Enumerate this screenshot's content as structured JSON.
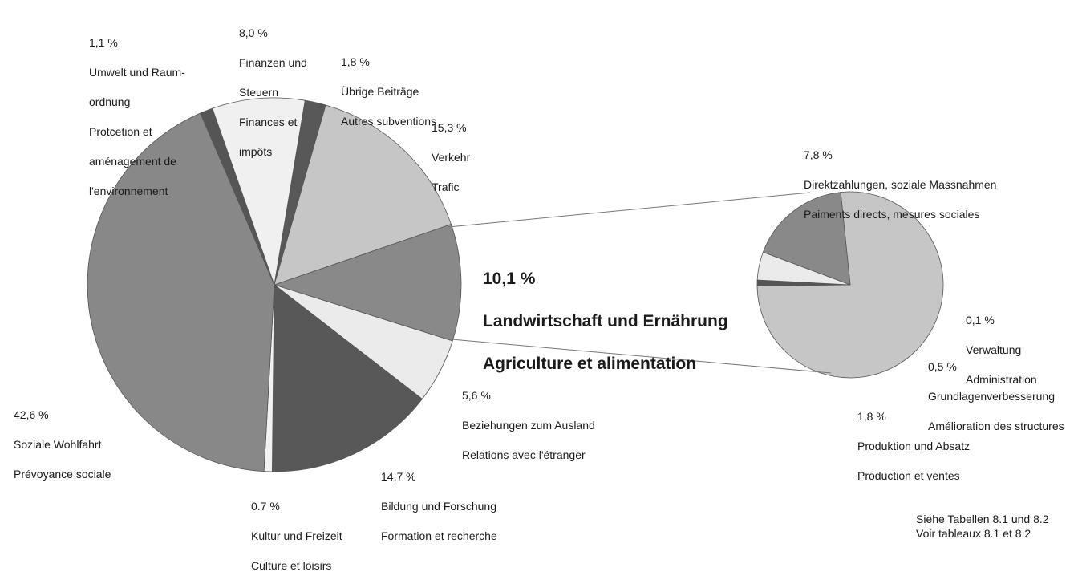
{
  "chart_data": [
    {
      "type": "pie",
      "slices": [
        {
          "name": "Landwirtschaft und Ernährung / Agriculture et alimentation",
          "value": 10.1,
          "value_label": "10,1 %",
          "label": [
            "Landwirtschaft und Ernährung",
            "Agriculture et alimentation"
          ],
          "color": "#898989"
        },
        {
          "name": "Beziehungen zum Ausland / Relations avec l'étranger",
          "value": 5.6,
          "value_label": "5,6 %",
          "label": [
            "Beziehungen zum Ausland",
            "Relations avec l'étranger"
          ],
          "color": "#ebebeb"
        },
        {
          "name": "Bildung und Forschung / Formation et recherche",
          "value": 14.7,
          "value_label": "14,7 %",
          "label": [
            "Bildung und Forschung",
            "Formation et recherche"
          ],
          "color": "#585858"
        },
        {
          "name": "Kultur und Freizeit / Culture et loisirs",
          "value": 0.7,
          "value_label": "0.7 %",
          "label": [
            "Kultur und Freizeit",
            "Culture et loisirs"
          ],
          "color": "#f2f2f2"
        },
        {
          "name": "Soziale Wohlfahrt / Prévoyance sociale",
          "value": 42.6,
          "value_label": "42,6 %",
          "label": [
            "Soziale Wohlfahrt",
            "Prévoyance sociale"
          ],
          "color": "#888888"
        },
        {
          "name": "Umwelt und Raumordnung / Protcetion et aménagement de l'environnement",
          "value": 1.1,
          "value_label": "1,1 %",
          "label": [
            "Umwelt und Raum-",
            "ordnung",
            "Protcetion et",
            "aménagement de",
            "l'environnement"
          ],
          "color": "#555555"
        },
        {
          "name": "Finanzen und Steuern / Finances et impôts",
          "value": 8.0,
          "value_label": "8,0 %",
          "label": [
            "Finanzen und",
            "Steuern",
            "Finances et",
            "impôts"
          ],
          "color": "#f0f0f0"
        },
        {
          "name": "Übrige Beiträge / Autres subventions",
          "value": 1.8,
          "value_label": "1,8 %",
          "label": [
            "Übrige Beiträge",
            "Autres subventions"
          ],
          "color": "#585858"
        },
        {
          "name": "Verkehr / Trafic",
          "value": 15.3,
          "value_label": "15,3 %",
          "label": [
            "Verkehr",
            "Trafic"
          ],
          "color": "#c6c6c6"
        }
      ]
    },
    {
      "type": "pie",
      "slices": [
        {
          "name": "Direktzahlungen, soziale Massnahmen / Paiments directs, mesures sociales",
          "value": 7.8,
          "value_label": "7,8 %",
          "label": [
            "Direktzahlungen, soziale Massnahmen",
            "Paiments directs, mesures sociales"
          ],
          "color": "#c6c6c6"
        },
        {
          "name": "Verwaltung / Administration",
          "value": 0.1,
          "value_label": "0,1 %",
          "label": [
            "Verwaltung",
            "Administration"
          ],
          "color": "#555555"
        },
        {
          "name": "Grundlagenverbesserung / Amélioration des structures",
          "value": 0.5,
          "value_label": "0,5 %",
          "label": [
            "Grundlagenverbesserung",
            "Amélioration des structures"
          ],
          "color": "#ebebeb"
        },
        {
          "name": "Produktion und Absatz / Production et ventes",
          "value": 1.8,
          "value_label": "1,8 %",
          "label": [
            "Produktion und Absatz",
            "Production et ventes"
          ],
          "color": "#898989"
        }
      ]
    }
  ],
  "footnote": {
    "line1": "Siehe Tabellen 8.1 und 8.2",
    "line2": "Voir tableaux 8.1 et 8.2"
  }
}
